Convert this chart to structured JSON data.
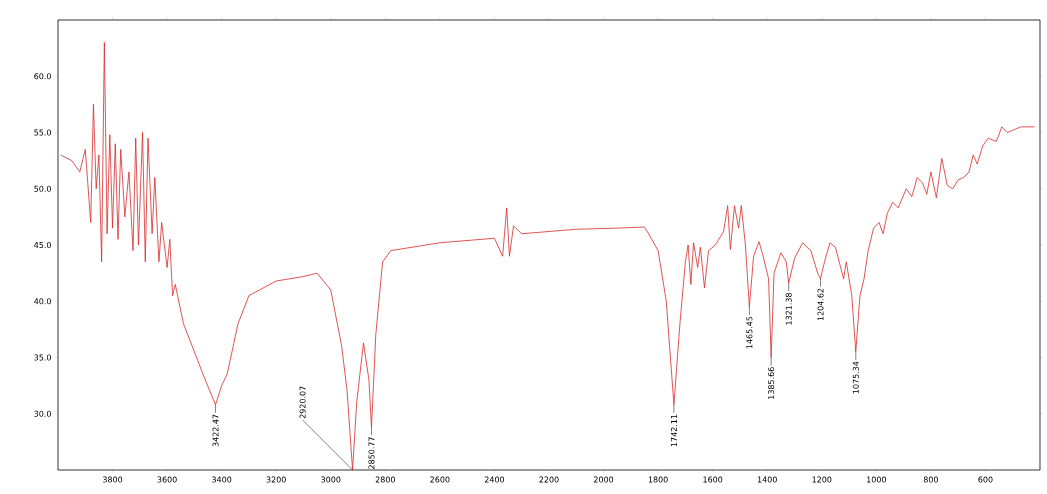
{
  "chart_data": {
    "type": "line",
    "xlim": [
      4000,
      400
    ],
    "ylim": [
      25,
      65
    ],
    "xticks": [
      3800,
      3600,
      3400,
      3200,
      3000,
      2800,
      2600,
      2400,
      2200,
      2000,
      1800,
      1600,
      1400,
      1200,
      1000,
      800,
      600
    ],
    "yticks": [
      {
        "value": 30,
        "label": "30.0"
      },
      {
        "value": 35,
        "label": "35.0"
      },
      {
        "value": 40,
        "label": "40.0"
      },
      {
        "value": 45,
        "label": "45.0"
      },
      {
        "value": 50,
        "label": "50.0"
      },
      {
        "value": 55,
        "label": "55.0"
      },
      {
        "value": 60,
        "label": "60.0"
      }
    ],
    "grid": false,
    "marker": "none",
    "line_style": "solid",
    "series": [
      {
        "color": "#d82a2a",
        "x": [
          3990,
          3950,
          3920,
          3900,
          3880,
          3870,
          3860,
          3850,
          3840,
          3830,
          3820,
          3810,
          3800,
          3790,
          3780,
          3770,
          3755,
          3740,
          3725,
          3715,
          3705,
          3690,
          3680,
          3670,
          3655,
          3645,
          3630,
          3620,
          3600,
          3590,
          3580,
          3570,
          3540,
          3500,
          3460,
          3422.47,
          3400,
          3380,
          3340,
          3300,
          3200,
          3100,
          3050,
          3000,
          2960,
          2940,
          2920.07,
          2905,
          2880,
          2860,
          2850.77,
          2835,
          2810,
          2780,
          2600,
          2400,
          2370,
          2355,
          2345,
          2330,
          2300,
          2100,
          1950,
          1850,
          1830,
          1800,
          1770,
          1742.11,
          1720,
          1700,
          1690,
          1680,
          1670,
          1655,
          1645,
          1630,
          1615,
          1590,
          1560,
          1545,
          1535,
          1520,
          1505,
          1495,
          1480,
          1465.45,
          1450,
          1430,
          1415,
          1395,
          1385.66,
          1375,
          1350,
          1330,
          1321.38,
          1300,
          1270,
          1240,
          1215,
          1204.62,
          1190,
          1170,
          1150,
          1120,
          1110,
          1090,
          1075.34,
          1060,
          1045,
          1030,
          1010,
          990,
          975,
          960,
          940,
          920,
          890,
          870,
          850,
          830,
          815,
          800,
          780,
          760,
          740,
          720,
          700,
          680,
          660,
          645,
          630,
          610,
          590,
          560,
          540,
          520,
          500,
          470,
          420
        ],
        "values": [
          53.0,
          52.5,
          51.5,
          53.5,
          47,
          57.5,
          50,
          53,
          43.5,
          63,
          46,
          54.8,
          46.5,
          54,
          45.5,
          53.5,
          47.5,
          51.5,
          44.5,
          54.5,
          45,
          55,
          43.5,
          54.5,
          46,
          51,
          43.5,
          47,
          43,
          45.5,
          40.5,
          41.5,
          38,
          35.5,
          33,
          30.8,
          32.5,
          33.5,
          38,
          40.5,
          41.8,
          42.2,
          42.5,
          41,
          36,
          32,
          25.0,
          31,
          36.3,
          33,
          28.8,
          37,
          43.5,
          44.5,
          45.2,
          45.6,
          44,
          48.3,
          44,
          46.7,
          46,
          46.4,
          46.5,
          46.6,
          45.8,
          44.5,
          40,
          30.8,
          38,
          43.5,
          45,
          41.5,
          45.2,
          43,
          44.8,
          41.2,
          44.5,
          45,
          46.2,
          48.5,
          44.6,
          48.5,
          46.5,
          48.5,
          45,
          39.5,
          44,
          45.3,
          44,
          42,
          35,
          42.5,
          44.3,
          43.5,
          41.6,
          43.8,
          45.2,
          44.5,
          42.5,
          42,
          43.5,
          45.2,
          44.8,
          42,
          43.5,
          40.5,
          35.5,
          40.5,
          42,
          44.5,
          46.5,
          47,
          46,
          47.8,
          48.8,
          48.3,
          50,
          49.3,
          51,
          50.5,
          49.5,
          51.5,
          49.2,
          52.7,
          50.3,
          50,
          50.8,
          51,
          51.5,
          53,
          52.2,
          53.8,
          54.5,
          54.2,
          55.5,
          55,
          55.2,
          55.5,
          55.5
        ]
      }
    ],
    "annotations": [
      {
        "text": "3422.47",
        "x": 3422.47,
        "y": 30.8
      },
      {
        "text": "2920.07",
        "x": 2920.07,
        "y": 25.0
      },
      {
        "text": "2850.77",
        "x": 2850.77,
        "y": 28.8
      },
      {
        "text": "1742.11",
        "x": 1742.11,
        "y": 30.8
      },
      {
        "text": "1465.45",
        "x": 1465.45,
        "y": 39.5
      },
      {
        "text": "1385.66",
        "x": 1385.66,
        "y": 35
      },
      {
        "text": "1321.38",
        "x": 1321.38,
        "y": 41.6
      },
      {
        "text": "1204.62",
        "x": 1204.62,
        "y": 42
      },
      {
        "text": "1075.34",
        "x": 1075.34,
        "y": 35.5
      }
    ]
  }
}
